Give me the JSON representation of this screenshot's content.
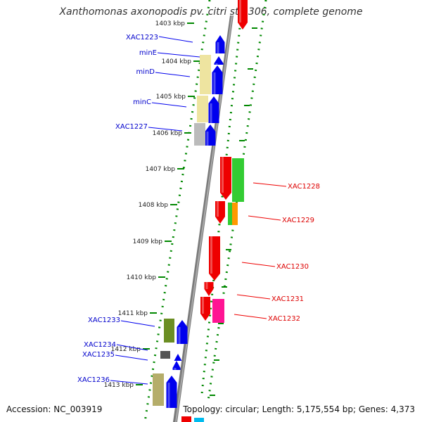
{
  "title": "Xanthomonas axonopodis pv. citri str. 306, complete genome",
  "accession_label": "Accession: NC_003919",
  "topology_label": "Topology: circular; Length: 5,175,554 bp; Genes: 4,373",
  "colors": {
    "forward_gene": "#0000ee",
    "reverse_gene": "#ee0000",
    "forward_label": "#0000cc",
    "reverse_label": "#dd0000",
    "tick": "#008800",
    "backbone": "#888888",
    "khaki": "#eee4a0",
    "olive": "#6b8e23",
    "gray": "#bbbbbb",
    "green": "#33cc33",
    "orange": "#ff9900",
    "magenta": "#ff1493",
    "cyan": "#00bbee"
  },
  "scale_ticks": [
    "1403 kbp",
    "1404 kbp",
    "1405 kbp",
    "1406 kbp",
    "1407 kbp",
    "1408 kbp",
    "1409 kbp",
    "1410 kbp",
    "1411 kbp",
    "1412 kbp",
    "1413 kbp"
  ],
  "forward_labels": [
    "XAC1223",
    "minE",
    "minD",
    "minC",
    "XAC1227",
    "XAC1233",
    "XAC1234",
    "XAC1235",
    "XAC1236"
  ],
  "reverse_labels": [
    "XAC1228",
    "XAC1229",
    "XAC1230",
    "XAC1231",
    "XAC1232"
  ]
}
